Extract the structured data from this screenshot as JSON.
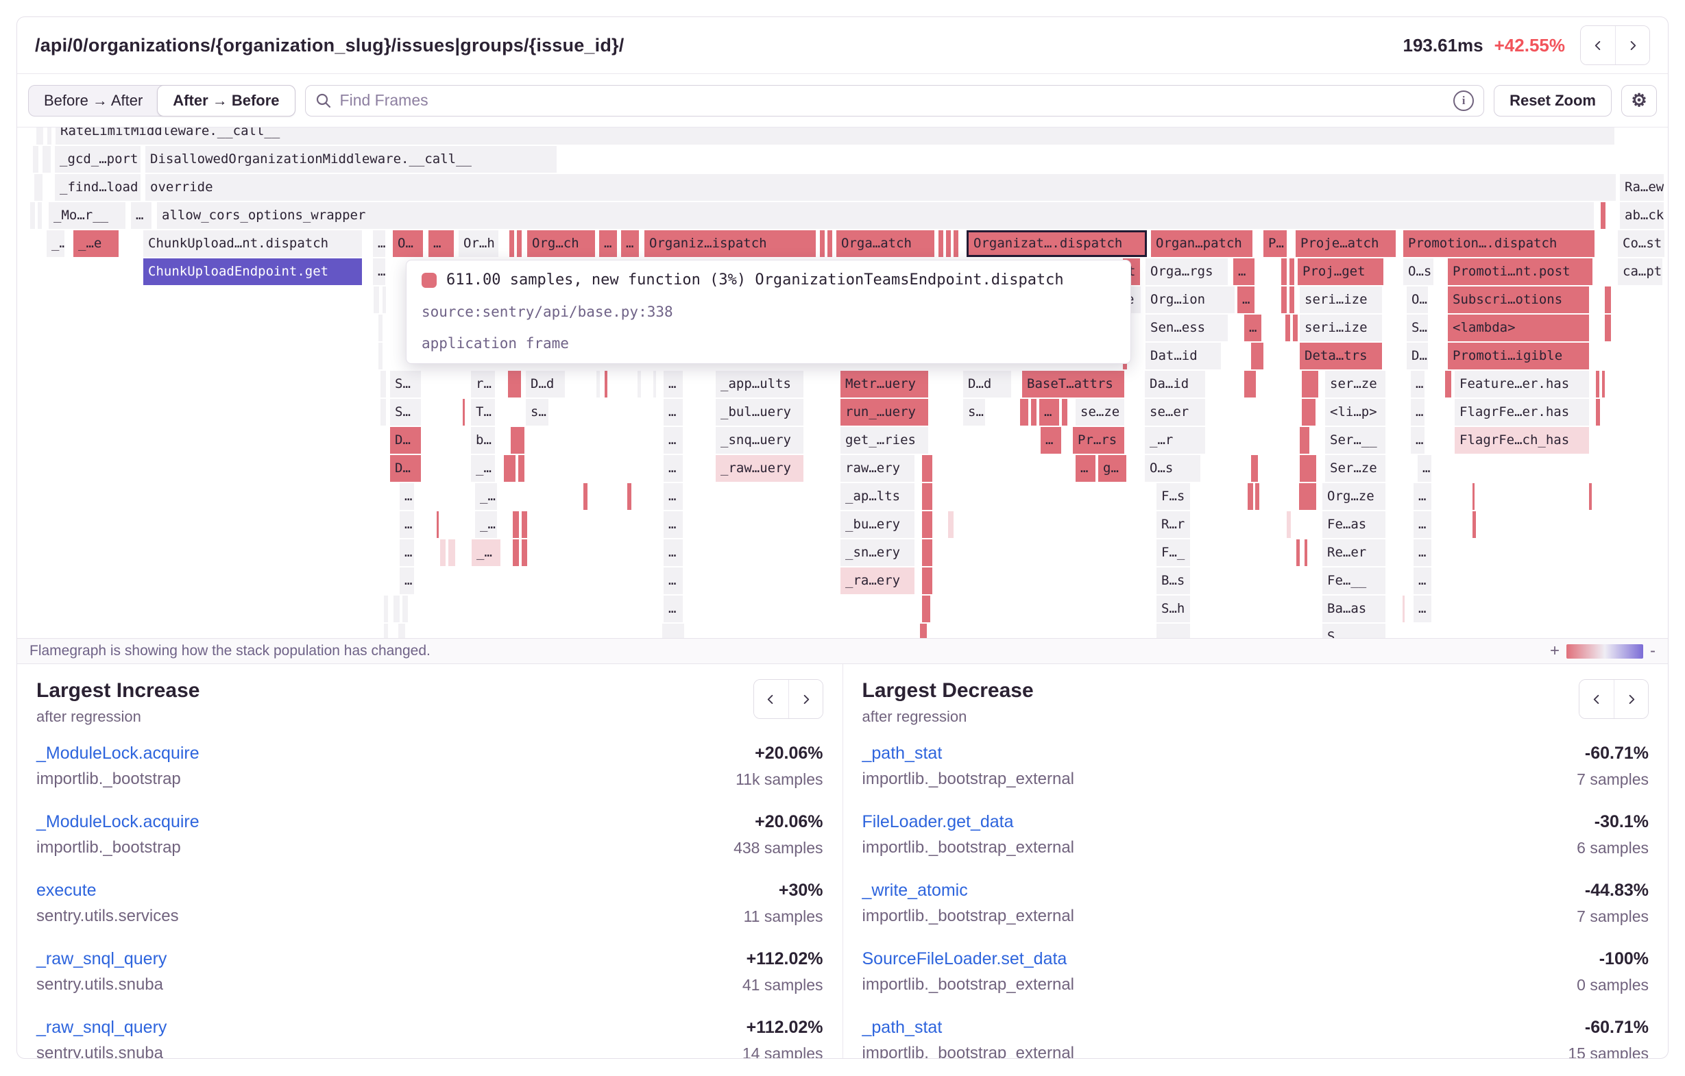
{
  "header": {
    "title": "/api/0/organizations/{organization_slug}/issues|groups/{issue_id}/",
    "duration": "193.61ms",
    "change": "+42.55%"
  },
  "toolbar": {
    "toggle_before_after": "Before → After",
    "toggle_after_before": "After → Before",
    "search_placeholder": "Find Frames",
    "reset_zoom_label": "Reset Zoom"
  },
  "tooltip": {
    "line1": "611.00 samples, new function (3%) OrganizationTeamsEndpoint.dispatch",
    "source": "source:sentry/api/base.py:338",
    "frame_type": "application frame"
  },
  "statusbar": {
    "message": "Flamegraph is showing how the stack population has changed.",
    "plus": "+",
    "minus": "-"
  },
  "colors": {
    "increase_red": "#df6f7a",
    "decrease_purple": "#7b6cd6",
    "selected_purple": "#6456c5",
    "highlight_pink": "#f6d9dd",
    "accent_red": "#f2545b",
    "link_blue": "#2d64dd"
  },
  "panels": {
    "increase": {
      "title": "Largest Increase",
      "subtitle": "after regression",
      "items": [
        {
          "name": "_ModuleLock.acquire",
          "module": "importlib._bootstrap",
          "value": "+20.06%",
          "samples": "11k samples"
        },
        {
          "name": "_ModuleLock.acquire",
          "module": "importlib._bootstrap",
          "value": "+20.06%",
          "samples": "438 samples"
        },
        {
          "name": "execute",
          "module": "sentry.utils.services",
          "value": "+30%",
          "samples": "11 samples"
        },
        {
          "name": "_raw_snql_query",
          "module": "sentry.utils.snuba",
          "value": "+112.02%",
          "samples": "41 samples"
        },
        {
          "name": "_raw_snql_query",
          "module": "sentry.utils.snuba",
          "value": "+112.02%",
          "samples": "14 samples"
        }
      ]
    },
    "decrease": {
      "title": "Largest Decrease",
      "subtitle": "after regression",
      "items": [
        {
          "name": "_path_stat",
          "module": "importlib._bootstrap_external",
          "value": "-60.71%",
          "samples": "7 samples"
        },
        {
          "name": "FileLoader.get_data",
          "module": "importlib._bootstrap_external",
          "value": "-30.1%",
          "samples": "6 samples"
        },
        {
          "name": "_write_atomic",
          "module": "importlib._bootstrap_external",
          "value": "-44.83%",
          "samples": "7 samples"
        },
        {
          "name": "SourceFileLoader.set_data",
          "module": "importlib._bootstrap_external",
          "value": "-100%",
          "samples": "0 samples"
        },
        {
          "name": "_path_stat",
          "module": "importlib._bootstrap_external",
          "value": "-60.71%",
          "samples": "15 samples"
        }
      ]
    }
  },
  "flamegraph": {
    "rows": [
      [
        [
          28,
          10,
          "g"
        ],
        [
          44,
          6,
          "g"
        ],
        [
          56,
          2274,
          "g",
          "RateLimitMiddleware.__call__"
        ]
      ],
      [
        [
          23,
          8,
          "g"
        ],
        [
          37,
          12,
          "g"
        ],
        [
          55,
          125,
          "g",
          "_gcd_…port"
        ],
        [
          187,
          600,
          "g",
          "DisallowedOrganizationMiddleware.__call__"
        ]
      ],
      [
        [
          25,
          12,
          "g"
        ],
        [
          55,
          125,
          "g",
          "_find…load"
        ],
        [
          187,
          2145,
          "g",
          "override"
        ],
        [
          2338,
          64,
          "g",
          "Ra…ew"
        ]
      ],
      [
        [
          19,
          7,
          "g"
        ],
        [
          30,
          6,
          "g"
        ],
        [
          46,
          112,
          "g",
          "_Mo…r__"
        ],
        [
          166,
          30,
          "g",
          "…"
        ],
        [
          204,
          2096,
          "g",
          "allow_cors_options_wrapper"
        ],
        [
          2310,
          7,
          "r"
        ],
        [
          2338,
          64,
          "g",
          "ab…ck"
        ]
      ],
      [
        [
          43,
          26,
          "g",
          "_…"
        ],
        [
          82,
          66,
          "r",
          "_…e"
        ],
        [
          184,
          319,
          "g",
          "ChunkUpload…nt.dispatch"
        ],
        [
          519,
          18,
          "g",
          "…"
        ],
        [
          548,
          44,
          "r",
          "O…"
        ],
        [
          600,
          37,
          "r",
          "…"
        ],
        [
          644,
          58,
          "g",
          "Or…h"
        ],
        [
          718,
          7,
          "r"
        ],
        [
          729,
          7,
          "r"
        ],
        [
          744,
          99,
          "r",
          "Org…ch"
        ],
        [
          849,
          26,
          "r",
          "…"
        ],
        [
          881,
          26,
          "r",
          "…"
        ],
        [
          915,
          250,
          "r",
          "Organiz…ispatch"
        ],
        [
          1171,
          7,
          "r"
        ],
        [
          1182,
          7,
          "r"
        ],
        [
          1195,
          143,
          "r",
          "Orga…atch"
        ],
        [
          1344,
          7,
          "r"
        ],
        [
          1355,
          7,
          "r"
        ],
        [
          1366,
          7,
          "r"
        ],
        [
          1385,
          263,
          "o",
          "Organizat….dispatch"
        ],
        [
          1654,
          148,
          "r",
          "Organ…patch"
        ],
        [
          1818,
          34,
          "r",
          "P…"
        ],
        [
          1865,
          146,
          "r",
          "Proje…atch"
        ],
        [
          2022,
          279,
          "r",
          "Promotion….dispatch"
        ],
        [
          2335,
          68,
          "g",
          "Co…st"
        ]
      ],
      [
        [
          184,
          319,
          "p",
          "ChunkUploadEndpoint.get"
        ],
        [
          519,
          18,
          "g",
          "…"
        ],
        [
          1613,
          25,
          "r",
          "t"
        ],
        [
          1646,
          120,
          "g",
          "Orga…rgs"
        ],
        [
          1774,
          31,
          "r",
          "…"
        ],
        [
          1844,
          8,
          "r"
        ],
        [
          1856,
          7,
          "r"
        ],
        [
          1868,
          125,
          "r",
          "Proj…get"
        ],
        [
          2022,
          44,
          "g",
          "O…s"
        ],
        [
          2087,
          211,
          "r",
          "Promoti…nt.post"
        ],
        [
          2335,
          65,
          "g",
          "ca…pt"
        ]
      ],
      [
        [
          520,
          8,
          "g"
        ],
        [
          533,
          5,
          "g"
        ],
        [
          1611,
          28,
          "g",
          "e"
        ],
        [
          1646,
          130,
          "g",
          "Org…ion"
        ],
        [
          1780,
          25,
          "r",
          "…"
        ],
        [
          1844,
          8,
          "r"
        ],
        [
          1856,
          7,
          "r"
        ],
        [
          1871,
          120,
          "g",
          "seri…ize"
        ],
        [
          2027,
          31,
          "g",
          "O…"
        ],
        [
          2087,
          206,
          "r",
          "Subscri…otions"
        ],
        [
          2316,
          9,
          "r"
        ]
      ],
      [
        [
          527,
          6,
          "g"
        ],
        [
          1613,
          8,
          "r"
        ],
        [
          1646,
          120,
          "g",
          "Sen…ess"
        ],
        [
          1790,
          25,
          "r",
          "…"
        ],
        [
          1850,
          7,
          "r"
        ],
        [
          1861,
          7,
          "r"
        ],
        [
          1871,
          120,
          "g",
          "seri…ize"
        ],
        [
          2027,
          31,
          "g",
          "S…"
        ],
        [
          2087,
          206,
          "r",
          "<lambda>"
        ],
        [
          2316,
          9,
          "r"
        ]
      ],
      [
        [
          527,
          6,
          "g"
        ],
        [
          1613,
          6,
          "r"
        ],
        [
          1646,
          110,
          "g",
          "Dat…id"
        ],
        [
          1800,
          18,
          "r"
        ],
        [
          1871,
          120,
          "r",
          "Deta…trs"
        ],
        [
          2027,
          31,
          "g",
          "D…"
        ],
        [
          2087,
          206,
          "r",
          "Promoti…igible"
        ]
      ],
      [
        [
          530,
          8,
          "g"
        ],
        [
          544,
          45,
          "g",
          "S…"
        ],
        [
          662,
          35,
          "g",
          "r…"
        ],
        [
          716,
          19,
          "r"
        ],
        [
          742,
          57,
          "g",
          "D…d"
        ],
        [
          845,
          5,
          "g"
        ],
        [
          857,
          4,
          "r"
        ],
        [
          905,
          5,
          "g"
        ],
        [
          928,
          4,
          "g"
        ],
        [
          943,
          28,
          "g",
          "…"
        ],
        [
          1019,
          128,
          "g",
          "_app…ults"
        ],
        [
          1201,
          128,
          "r",
          "Metr…uery"
        ],
        [
          1380,
          70,
          "g",
          "D…d"
        ],
        [
          1466,
          149,
          "r",
          "BaseT…attrs"
        ],
        [
          1645,
          88,
          "g",
          "Da…id"
        ],
        [
          1790,
          17,
          "r"
        ],
        [
          1874,
          24,
          "r"
        ],
        [
          1908,
          88,
          "g",
          "ser…ze"
        ],
        [
          2033,
          20,
          "g",
          "…"
        ],
        [
          2083,
          9,
          "r"
        ],
        [
          2097,
          196,
          "g",
          "Feature…er.has"
        ],
        [
          2303,
          5,
          "r"
        ],
        [
          2312,
          4,
          "r"
        ]
      ],
      [
        [
          530,
          8,
          "g"
        ],
        [
          544,
          45,
          "g",
          "S…"
        ],
        [
          650,
          3,
          "r"
        ],
        [
          662,
          35,
          "g",
          "T…"
        ],
        [
          742,
          33,
          "g",
          "s…"
        ],
        [
          943,
          28,
          "g",
          "…"
        ],
        [
          1019,
          128,
          "g",
          "_bul…uery"
        ],
        [
          1201,
          128,
          "r",
          "run_…uery"
        ],
        [
          1380,
          32,
          "g",
          "s…"
        ],
        [
          1463,
          12,
          "r"
        ],
        [
          1479,
          8,
          "r"
        ],
        [
          1491,
          29,
          "r",
          "…"
        ],
        [
          1524,
          8,
          "r"
        ],
        [
          1544,
          71,
          "g",
          "se…ze"
        ],
        [
          1645,
          88,
          "g",
          "se…er"
        ],
        [
          1874,
          20,
          "r"
        ],
        [
          1908,
          88,
          "g",
          "<li…p>"
        ],
        [
          2033,
          20,
          "g",
          "…"
        ],
        [
          2097,
          196,
          "g",
          "FlagrFe…er.has"
        ],
        [
          2303,
          6,
          "r"
        ]
      ],
      [
        [
          544,
          45,
          "r",
          "D…"
        ],
        [
          662,
          35,
          "g",
          "b…"
        ],
        [
          720,
          20,
          "r"
        ],
        [
          943,
          28,
          "g",
          "…"
        ],
        [
          1019,
          128,
          "g",
          "_snq…uery"
        ],
        [
          1201,
          128,
          "g",
          "get_…ries"
        ],
        [
          1493,
          30,
          "r",
          "…"
        ],
        [
          1540,
          75,
          "r",
          "Pr…rs"
        ],
        [
          1645,
          88,
          "g",
          "_…r"
        ],
        [
          1871,
          14,
          "r"
        ],
        [
          1908,
          88,
          "g",
          "Ser…__"
        ],
        [
          2033,
          20,
          "g",
          "…"
        ],
        [
          2097,
          196,
          "k",
          "FlagrFe…ch_has"
        ]
      ],
      [
        [
          544,
          45,
          "r",
          "D…"
        ],
        [
          662,
          35,
          "g",
          "_…"
        ],
        [
          710,
          17,
          "r"
        ],
        [
          731,
          9,
          "r"
        ],
        [
          943,
          28,
          "g",
          "…"
        ],
        [
          1019,
          128,
          "k",
          "_raw…uery"
        ],
        [
          1201,
          108,
          "g",
          "raw…ery"
        ],
        [
          1320,
          15,
          "r"
        ],
        [
          1544,
          29,
          "r",
          "…"
        ],
        [
          1577,
          41,
          "r",
          "g…"
        ],
        [
          1645,
          81,
          "g",
          "O…s"
        ],
        [
          1800,
          10,
          "r"
        ],
        [
          1871,
          24,
          "r"
        ],
        [
          1908,
          88,
          "g",
          "Ser…ze"
        ],
        [
          2043,
          20,
          "g",
          "…"
        ]
      ],
      [
        [
          558,
          21,
          "g",
          "…"
        ],
        [
          668,
          32,
          "g",
          "_…"
        ],
        [
          826,
          6,
          "r"
        ],
        [
          890,
          6,
          "r"
        ],
        [
          943,
          28,
          "g",
          "…"
        ],
        [
          1201,
          108,
          "g",
          "_ap…lts"
        ],
        [
          1320,
          15,
          "r"
        ],
        [
          1662,
          49,
          "g",
          "F…s"
        ],
        [
          1795,
          8,
          "r"
        ],
        [
          1806,
          6,
          "r"
        ],
        [
          1870,
          25,
          "r"
        ],
        [
          1904,
          92,
          "g",
          "Org…ze"
        ],
        [
          2037,
          26,
          "g",
          "…"
        ],
        [
          2123,
          3,
          "r"
        ],
        [
          2293,
          4,
          "r"
        ]
      ],
      [
        [
          558,
          21,
          "g",
          "…"
        ],
        [
          612,
          3,
          "r"
        ],
        [
          668,
          32,
          "g",
          "_…"
        ],
        [
          723,
          9,
          "r"
        ],
        [
          736,
          8,
          "r"
        ],
        [
          943,
          28,
          "g",
          "…"
        ],
        [
          1201,
          108,
          "g",
          "_bu…ery"
        ],
        [
          1320,
          15,
          "r"
        ],
        [
          1358,
          8,
          "k"
        ],
        [
          1662,
          49,
          "g",
          "R…r"
        ],
        [
          1852,
          6,
          "k"
        ],
        [
          1904,
          92,
          "g",
          "Fe…as"
        ],
        [
          2037,
          26,
          "g",
          "…"
        ],
        [
          2123,
          5,
          "r"
        ]
      ],
      [
        [
          558,
          21,
          "g",
          "…"
        ],
        [
          617,
          8,
          "k"
        ],
        [
          629,
          10,
          "k"
        ],
        [
          663,
          42,
          "k",
          "_…"
        ],
        [
          723,
          9,
          "r"
        ],
        [
          736,
          8,
          "r"
        ],
        [
          943,
          28,
          "g",
          "…"
        ],
        [
          1201,
          108,
          "g",
          "_sn…ery"
        ],
        [
          1320,
          15,
          "r"
        ],
        [
          1662,
          49,
          "g",
          "F…_"
        ],
        [
          1866,
          5,
          "r"
        ],
        [
          1878,
          4,
          "r"
        ],
        [
          1904,
          92,
          "g",
          "Re…er"
        ],
        [
          2037,
          26,
          "g",
          "…"
        ]
      ],
      [
        [
          558,
          21,
          "g",
          "…"
        ],
        [
          943,
          28,
          "g",
          "…"
        ],
        [
          1201,
          108,
          "k",
          "_ra…ery"
        ],
        [
          1320,
          15,
          "r"
        ],
        [
          1662,
          49,
          "g",
          "B…s"
        ],
        [
          1904,
          92,
          "g",
          "Fe…__"
        ],
        [
          2037,
          26,
          "g",
          "…"
        ]
      ],
      [
        [
          535,
          6,
          "g"
        ],
        [
          549,
          9,
          "g"
        ],
        [
          562,
          8,
          "g"
        ],
        [
          943,
          28,
          "g",
          "…"
        ],
        [
          1320,
          12,
          "r"
        ],
        [
          1662,
          49,
          "g",
          "S…h"
        ],
        [
          1904,
          92,
          "g",
          "Ba…as"
        ],
        [
          2021,
          3,
          "k"
        ],
        [
          2037,
          26,
          "g",
          "…"
        ]
      ],
      [
        [
          535,
          6,
          "g"
        ],
        [
          556,
          10,
          "g"
        ],
        [
          941,
          32,
          "g"
        ],
        [
          1317,
          10,
          "r"
        ],
        [
          1662,
          49,
          "g"
        ],
        [
          1904,
          92,
          "g",
          "S"
        ]
      ]
    ]
  }
}
